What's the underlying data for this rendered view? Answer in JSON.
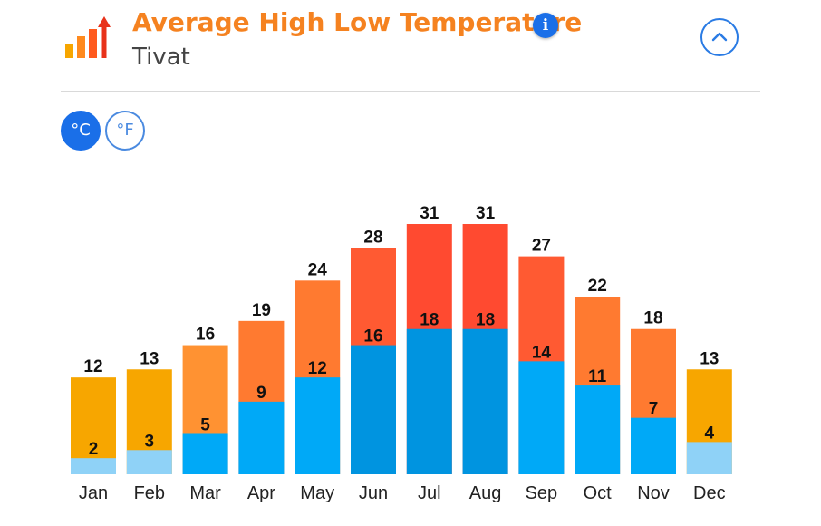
{
  "header": {
    "title": "Average High Low Temperature",
    "subtitle": "Tivat",
    "info_label": "i"
  },
  "units": {
    "celsius_label": "°C",
    "fahrenheit_label": "°F",
    "selected": "celsius"
  },
  "colors": {
    "title": "#f58220",
    "accent_blue": "#1a6fe8",
    "high_cool": "#f7a600",
    "high_mild": "#ff9232",
    "high_warm": "#ff7a30",
    "high_hot": "#ff5a32",
    "high_hottest": "#ff4a30",
    "low_cold": "#8fd2f7",
    "low_mild": "#00a9f7",
    "low_warm": "#0094e0"
  },
  "chart_data": {
    "type": "bar",
    "title": "Average High Low Temperature",
    "categories": [
      "Jan",
      "Feb",
      "Mar",
      "Apr",
      "May",
      "Jun",
      "Jul",
      "Aug",
      "Sep",
      "Oct",
      "Nov",
      "Dec"
    ],
    "series": [
      {
        "values": [
          12,
          13,
          16,
          19,
          24,
          28,
          31,
          31,
          27,
          22,
          18,
          13
        ]
      },
      {
        "values": [
          2,
          3,
          5,
          9,
          12,
          16,
          18,
          18,
          14,
          11,
          7,
          4
        ]
      }
    ],
    "ylim": [
      0,
      31
    ],
    "grid": false,
    "legend": "none"
  }
}
